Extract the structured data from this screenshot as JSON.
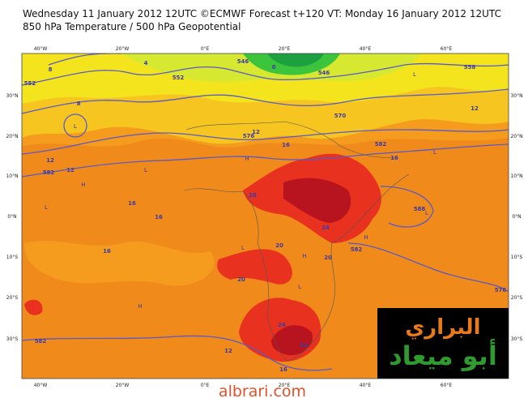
{
  "header": {
    "line1": "Wednesday 11 January 2012 12UTC ©ECMWF Forecast t+120 VT: Monday 16 January 2012 12UTC",
    "line2": "850 hPa Temperature / 500 hPa Geopotential"
  },
  "map": {
    "longitude_labels": [
      "40°W",
      "20°W",
      "0°E",
      "20°E",
      "40°E",
      "60°E"
    ],
    "latitude_labels": [
      "30°N",
      "20°N",
      "10°N",
      "0°N",
      "10°S",
      "20°S",
      "30°S"
    ],
    "contour_labels": [
      "552",
      "552",
      "546",
      "546",
      "558",
      "570",
      "576",
      "582",
      "582",
      "588",
      "582",
      "582",
      "576",
      "12",
      "12",
      "16",
      "16",
      "16",
      "12",
      "16",
      "20",
      "20",
      "20",
      "24",
      "20",
      "24",
      "24",
      "16",
      "12",
      "12",
      "16",
      "8",
      "0",
      "8",
      "4"
    ],
    "pressure_centers": [
      "L",
      "H",
      "L",
      "L",
      "H",
      "H",
      "L",
      "L",
      "H",
      "L",
      "L",
      "H",
      "L"
    ]
  },
  "logo": {
    "line1": "البراري",
    "line2": "أبو ميعاد"
  },
  "footer": {
    "url": "albrari.com"
  }
}
